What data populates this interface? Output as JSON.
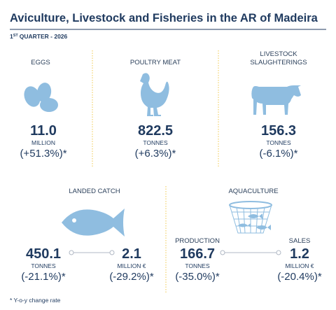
{
  "header": {
    "title": "Aviculture, Livestock and Fisheries in the AR of Madeira",
    "subtitle": {
      "number": "1",
      "suffix": "ST",
      "rest": "QUARTER - 2026"
    }
  },
  "panels": [
    {
      "label": "EGGS",
      "value": "11.0",
      "unit": "MILLION",
      "change": "(+51.3%)*"
    },
    {
      "label": "POULTRY MEAT",
      "value": "822.5",
      "unit": "TONNES",
      "change": "(+6.3%)*"
    },
    {
      "label": [
        "LIVESTOCK",
        "SLAUGHTERINGS"
      ],
      "value": "156.3",
      "unit": "TONNES",
      "change": "(-6.1%)*"
    }
  ],
  "landed_catch": {
    "label": "LANDED CATCH",
    "items": [
      {
        "value": "450.1",
        "unit": "TONNES",
        "change": "(-21.1%)*"
      },
      {
        "value": "2.1",
        "unit": "MILLION €",
        "change": "(-29.2%)*"
      }
    ]
  },
  "aquaculture": {
    "label": "AQUACULTURE",
    "items": [
      {
        "label": "PRODUCTION",
        "value": "166.7",
        "unit": "TONNES",
        "change": "(-35.0%)*"
      },
      {
        "label": "SALES",
        "value": "1.2",
        "unit": "MILLION €",
        "change": "(-20.4%)*"
      }
    ]
  },
  "footnote": "* Y-o-y change rate"
}
